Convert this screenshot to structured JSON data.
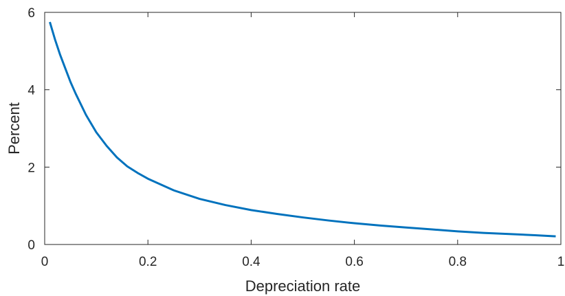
{
  "chart_data": {
    "type": "line",
    "title": "",
    "xlabel": "Depreciation rate",
    "ylabel": "Percent",
    "xlim": [
      0,
      1
    ],
    "ylim": [
      0,
      6
    ],
    "xticks": [
      0,
      0.2,
      0.4,
      0.6,
      0.8,
      1
    ],
    "yticks": [
      0,
      2,
      4,
      6
    ],
    "xtick_labels": [
      "0",
      "0.2",
      "0.4",
      "0.6",
      "0.8",
      "1"
    ],
    "ytick_labels": [
      "0",
      "2",
      "4",
      "6"
    ],
    "grid": false,
    "series": [
      {
        "color": "#0072BD",
        "x": [
          0.01,
          0.02,
          0.03,
          0.04,
          0.05,
          0.06,
          0.08,
          0.1,
          0.12,
          0.14,
          0.16,
          0.18,
          0.2,
          0.25,
          0.3,
          0.35,
          0.4,
          0.45,
          0.5,
          0.55,
          0.6,
          0.65,
          0.7,
          0.75,
          0.8,
          0.85,
          0.9,
          0.95,
          0.99
        ],
        "y": [
          5.75,
          5.3,
          4.9,
          4.55,
          4.2,
          3.9,
          3.35,
          2.9,
          2.55,
          2.25,
          2.02,
          1.85,
          1.7,
          1.4,
          1.18,
          1.02,
          0.89,
          0.79,
          0.7,
          0.62,
          0.55,
          0.49,
          0.44,
          0.39,
          0.34,
          0.3,
          0.27,
          0.24,
          0.21
        ]
      }
    ]
  }
}
